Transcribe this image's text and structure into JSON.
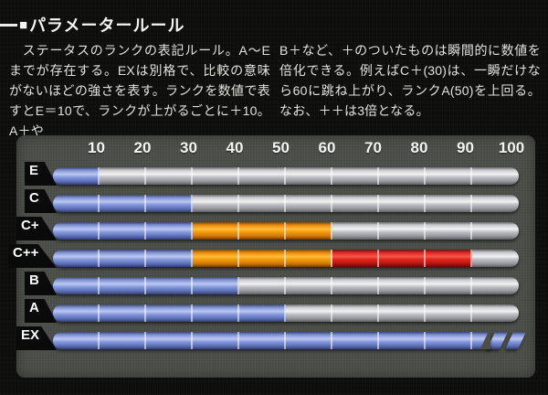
{
  "header": {
    "marker": "■",
    "title": "パラメータールール"
  },
  "body": {
    "left_column": "　ステータスのランクの表記ルール。A～Eまでが存在する。EXは別格で、比較の意味がないほどの強さを表す。ランクを数値で表すとE＝10で、ランクが上がるごとに＋10。A＋や",
    "right_column": "B＋など、＋のついたものは瞬間的に数値を倍化できる。例えばC＋(30)は、一瞬だけなら60に跳ね上がり、ランクA(50)を上回る。なお、＋＋は3倍となる。"
  },
  "chart_data": {
    "type": "bar",
    "orientation": "horizontal",
    "xlim": [
      0,
      100
    ],
    "x_ticks": [
      10,
      20,
      30,
      40,
      50,
      60,
      70,
      80,
      90,
      100
    ],
    "grid": false,
    "legend": false,
    "categories": [
      "E",
      "C",
      "C+",
      "C++",
      "B",
      "A",
      "EX"
    ],
    "rows": [
      {
        "label": "E",
        "segments": [
          {
            "from": 0,
            "to": 10,
            "color": "blue"
          },
          {
            "from": 10,
            "to": 100,
            "color": "silver"
          }
        ]
      },
      {
        "label": "C",
        "segments": [
          {
            "from": 0,
            "to": 30,
            "color": "blue"
          },
          {
            "from": 30,
            "to": 100,
            "color": "silver"
          }
        ]
      },
      {
        "label": "C+",
        "segments": [
          {
            "from": 0,
            "to": 30,
            "color": "blue"
          },
          {
            "from": 30,
            "to": 60,
            "color": "orange"
          },
          {
            "from": 60,
            "to": 100,
            "color": "silver"
          }
        ]
      },
      {
        "label": "C++",
        "segments": [
          {
            "from": 0,
            "to": 30,
            "color": "blue"
          },
          {
            "from": 30,
            "to": 60,
            "color": "orange"
          },
          {
            "from": 60,
            "to": 90,
            "color": "red"
          },
          {
            "from": 90,
            "to": 100,
            "color": "silver"
          }
        ]
      },
      {
        "label": "B",
        "segments": [
          {
            "from": 0,
            "to": 40,
            "color": "blue"
          },
          {
            "from": 40,
            "to": 100,
            "color": "silver"
          }
        ]
      },
      {
        "label": "A",
        "segments": [
          {
            "from": 0,
            "to": 50,
            "color": "blue"
          },
          {
            "from": 50,
            "to": 100,
            "color": "silver"
          }
        ]
      },
      {
        "label": "EX",
        "overflow": true,
        "segments": [
          {
            "from": 0,
            "to": 100,
            "color": "blue"
          }
        ]
      }
    ],
    "colors": {
      "blue": "#8a9ce0",
      "silver": "#c9c9ce",
      "orange": "#f59d12",
      "red": "#e02a20",
      "panel_bg": "#4c4f49",
      "page_bg": "#0d0d0b",
      "label_flag": "#0a0a0a",
      "text": "#f4f4f2"
    }
  }
}
